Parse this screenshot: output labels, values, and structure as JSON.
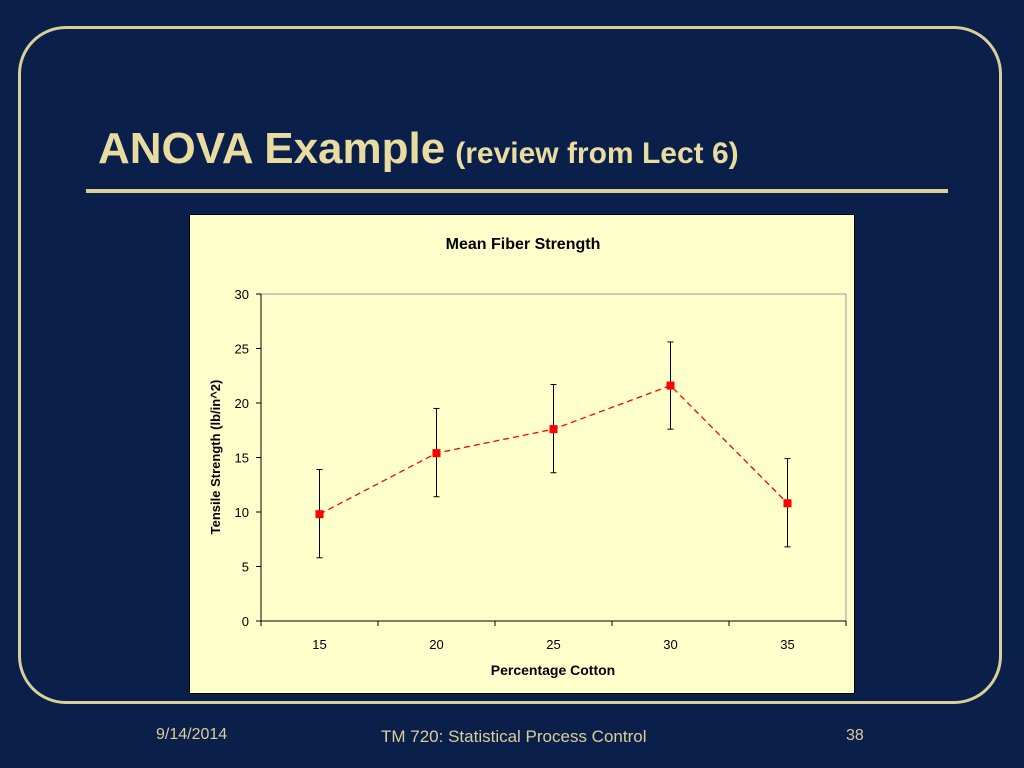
{
  "slide": {
    "title_main": "ANOVA Example",
    "title_sub": "(review from Lect 6)",
    "footer_date": "9/14/2014",
    "footer_course": "TM 720: Statistical  Process Control",
    "footer_page": "38"
  },
  "colors": {
    "background": "#0b1f4b",
    "accent": "#d9cf98",
    "chart_bg": "#ffffcc",
    "series": "#ff0000"
  },
  "chart_data": {
    "type": "line",
    "title": "Mean Fiber Strength",
    "xlabel": "Percentage Cotton",
    "ylabel": "Tensile Strength (lb/in^2)",
    "categories": [
      "15",
      "20",
      "25",
      "30",
      "35"
    ],
    "series": [
      {
        "values": [
          9.8,
          15.4,
          17.6,
          21.6,
          10.8
        ],
        "error_low": [
          5.8,
          11.4,
          13.6,
          17.6,
          6.8
        ],
        "error_high": [
          13.9,
          19.5,
          21.7,
          25.6,
          14.9
        ]
      }
    ],
    "ylim": [
      0,
      30
    ],
    "yticks": [
      "0",
      "5",
      "10",
      "15",
      "20",
      "25",
      "30"
    ],
    "grid": false,
    "legend": "none",
    "line_style": "dashed",
    "marker": "square"
  }
}
